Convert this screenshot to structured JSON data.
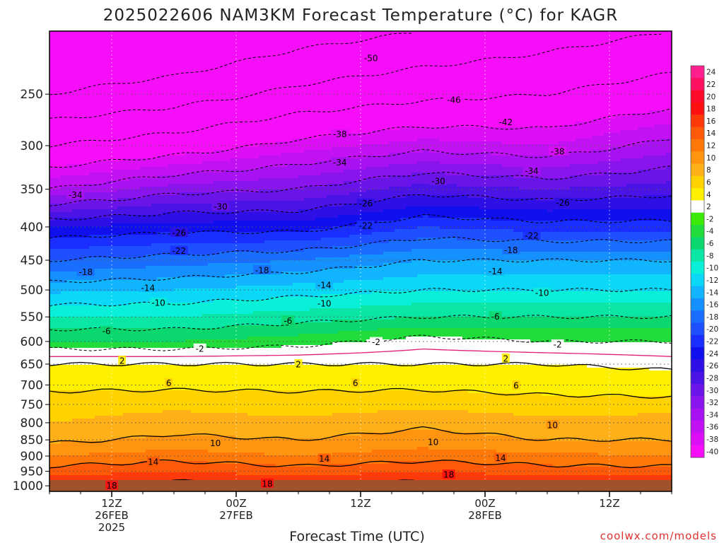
{
  "title": "2025022606 NAM3KM Forecast Temperature (°C) for KAGR",
  "xlabel": "Forecast Time (UTC)",
  "credit": "coolwx.com/models",
  "colors": {
    "ground": "#a0522d",
    "freezing_line": "#e0207a",
    "contour_line": "#000000"
  },
  "chart_data": {
    "type": "heatmap",
    "title": "2025022606 NAM3KM Forecast Temperature (°C) for KAGR",
    "xlabel": "Forecast Time (UTC)",
    "ylabel": "",
    "x_range_hours": [
      0,
      60
    ],
    "x_ticks": [
      {
        "hour": 6,
        "lines": [
          "12Z",
          "26FEB",
          "2025"
        ]
      },
      {
        "hour": 18,
        "lines": [
          "00Z",
          "27FEB"
        ]
      },
      {
        "hour": 30,
        "lines": [
          "12Z"
        ]
      },
      {
        "hour": 42,
        "lines": [
          "00Z",
          "28FEB"
        ]
      },
      {
        "hour": 54,
        "lines": [
          "12Z"
        ]
      }
    ],
    "y_scale": "log-pressure (hPa), inverted",
    "y_range_hpa": [
      1020,
      200
    ],
    "y_ticks": [
      250,
      300,
      350,
      400,
      450,
      500,
      550,
      600,
      650,
      700,
      750,
      800,
      850,
      900,
      950,
      1000
    ],
    "grid": true,
    "legend": {
      "placement": "right",
      "bins": [
        {
          "label": "24",
          "color": "#ff1f8f"
        },
        {
          "label": "22",
          "color": "#ff1060"
        },
        {
          "label": "20",
          "color": "#ff0a2a"
        },
        {
          "label": "18",
          "color": "#ff1010"
        },
        {
          "label": "16",
          "color": "#ff3a0a"
        },
        {
          "label": "14",
          "color": "#ff5a08"
        },
        {
          "label": "12",
          "color": "#ff7808"
        },
        {
          "label": "10",
          "color": "#ff9410"
        },
        {
          "label": "8",
          "color": "#ffb018"
        },
        {
          "label": "6",
          "color": "#ffd200"
        },
        {
          "label": "4",
          "color": "#fff000"
        },
        {
          "label": "2",
          "color": "#ffffff"
        },
        {
          "label": "-2",
          "color": "#3cea0a"
        },
        {
          "label": "-4",
          "color": "#22dc3c"
        },
        {
          "label": "-6",
          "color": "#0ad86e"
        },
        {
          "label": "-8",
          "color": "#0ae6a6"
        },
        {
          "label": "-10",
          "color": "#0af0d8"
        },
        {
          "label": "-12",
          "color": "#0ad8f6"
        },
        {
          "label": "-14",
          "color": "#10b4ff"
        },
        {
          "label": "-16",
          "color": "#1490ff"
        },
        {
          "label": "-18",
          "color": "#1a6eff"
        },
        {
          "label": "-20",
          "color": "#1e50ff"
        },
        {
          "label": "-22",
          "color": "#1a2eff"
        },
        {
          "label": "-24",
          "color": "#1010ee"
        },
        {
          "label": "-26",
          "color": "#2e10e6"
        },
        {
          "label": "-28",
          "color": "#4a14e6"
        },
        {
          "label": "-30",
          "color": "#6a14ea"
        },
        {
          "label": "-32",
          "color": "#8a14ee"
        },
        {
          "label": "-34",
          "color": "#a812f2"
        },
        {
          "label": "-36",
          "color": "#c212f4"
        },
        {
          "label": "-38",
          "color": "#dc0ef6"
        },
        {
          "label": "-40",
          "color": "#f60ef8"
        }
      ]
    },
    "profile_hpa": [
      1020,
      1000,
      950,
      900,
      850,
      800,
      750,
      700,
      650,
      600,
      550,
      500,
      450,
      400,
      350,
      300,
      250,
      200
    ],
    "times_hours": [
      0,
      12,
      24,
      36,
      48,
      60
    ],
    "series": [
      {
        "hour": 0,
        "temps": [
          19,
          18,
          15,
          12,
          9.5,
          8,
          7,
          5.5,
          2,
          -4,
          -8,
          -12.5,
          -18,
          -24,
          -34,
          -42,
          -50,
          -56
        ]
      },
      {
        "hour": 12,
        "temps": [
          20,
          19,
          16,
          13,
          10.5,
          9,
          7.5,
          5.5,
          2,
          -4,
          -8,
          -12,
          -17,
          -23,
          -31,
          -40,
          -48,
          -55
        ]
      },
      {
        "hour": 24,
        "temps": [
          19,
          18,
          15,
          12,
          10,
          8.5,
          7,
          5.5,
          2,
          -3,
          -7,
          -11,
          -16,
          -23,
          -30,
          -37,
          -45,
          -52
        ]
      },
      {
        "hour": 36,
        "temps": [
          20,
          19,
          16,
          13,
          11,
          9.5,
          7.5,
          5.5,
          2,
          -1,
          -6,
          -10,
          -14,
          -20,
          -27,
          -35,
          -43,
          -50
        ]
      },
      {
        "hour": 48,
        "temps": [
          19,
          18,
          15,
          12.5,
          10,
          8.5,
          7,
          5,
          2,
          -2,
          -6,
          -10,
          -14,
          -21,
          -28,
          -36,
          -42,
          -48
        ]
      },
      {
        "hour": 60,
        "temps": [
          19,
          18,
          15,
          12,
          10,
          9,
          7,
          4.5,
          1,
          -2,
          -6,
          -10,
          -14,
          -21,
          -27,
          -33,
          -40,
          -46
        ]
      }
    ],
    "contour_labels": [
      {
        "value": -50,
        "hour": 31,
        "hpa": 220
      },
      {
        "value": -46,
        "hour": 39,
        "hpa": 255
      },
      {
        "value": -42,
        "hour": 44,
        "hpa": 276
      },
      {
        "value": -38,
        "hour": 28,
        "hpa": 288
      },
      {
        "value": -38,
        "hour": 49,
        "hpa": 306
      },
      {
        "value": -34,
        "hour": 28,
        "hpa": 318
      },
      {
        "value": -34,
        "hour": 46.5,
        "hpa": 328
      },
      {
        "value": -34,
        "hour": 2.5,
        "hpa": 357
      },
      {
        "value": -30,
        "hour": 37.5,
        "hpa": 340
      },
      {
        "value": -30,
        "hour": 16.5,
        "hpa": 372
      },
      {
        "value": -26,
        "hour": 30.5,
        "hpa": 368
      },
      {
        "value": -26,
        "hour": 49.5,
        "hpa": 367
      },
      {
        "value": -26,
        "hour": 12.5,
        "hpa": 408
      },
      {
        "value": -22,
        "hour": 30.5,
        "hpa": 398
      },
      {
        "value": -22,
        "hour": 46.5,
        "hpa": 412
      },
      {
        "value": -22,
        "hour": 12.5,
        "hpa": 435
      },
      {
        "value": -18,
        "hour": 44.5,
        "hpa": 434
      },
      {
        "value": -18,
        "hour": 20.5,
        "hpa": 466
      },
      {
        "value": -18,
        "hour": 3.5,
        "hpa": 469
      },
      {
        "value": -14,
        "hour": 26.5,
        "hpa": 491
      },
      {
        "value": -14,
        "hour": 43,
        "hpa": 468
      },
      {
        "value": -14,
        "hour": 9.5,
        "hpa": 496
      },
      {
        "value": -10,
        "hour": 47.5,
        "hpa": 505
      },
      {
        "value": -10,
        "hour": 26.5,
        "hpa": 524
      },
      {
        "value": -10,
        "hour": 10.5,
        "hpa": 523
      },
      {
        "value": -6,
        "hour": 23,
        "hpa": 557
      },
      {
        "value": -6,
        "hour": 43,
        "hpa": 549
      },
      {
        "value": -6,
        "hour": 5.5,
        "hpa": 578
      },
      {
        "value": -2,
        "hour": 31.5,
        "hpa": 601
      },
      {
        "value": -2,
        "hour": 49,
        "hpa": 606
      },
      {
        "value": -2,
        "hour": 14.5,
        "hpa": 615
      },
      {
        "value": 2,
        "hour": 7,
        "hpa": 642
      },
      {
        "value": 2,
        "hour": 24,
        "hpa": 650
      },
      {
        "value": 2,
        "hour": 44,
        "hpa": 637
      },
      {
        "value": 6,
        "hour": 11.5,
        "hpa": 695
      },
      {
        "value": 6,
        "hour": 29.5,
        "hpa": 695
      },
      {
        "value": 6,
        "hour": 45,
        "hpa": 701
      },
      {
        "value": 10,
        "hour": 48.5,
        "hpa": 806
      },
      {
        "value": 10,
        "hour": 37,
        "hpa": 856
      },
      {
        "value": 10,
        "hour": 16,
        "hpa": 859
      },
      {
        "value": 14,
        "hour": 10,
        "hpa": 918
      },
      {
        "value": 14,
        "hour": 26.5,
        "hpa": 908
      },
      {
        "value": 14,
        "hour": 43.5,
        "hpa": 906
      },
      {
        "value": 18,
        "hour": 38.5,
        "hpa": 961
      },
      {
        "value": 18,
        "hour": 21,
        "hpa": 992
      },
      {
        "value": 18,
        "hour": 6,
        "hpa": 999
      }
    ]
  }
}
